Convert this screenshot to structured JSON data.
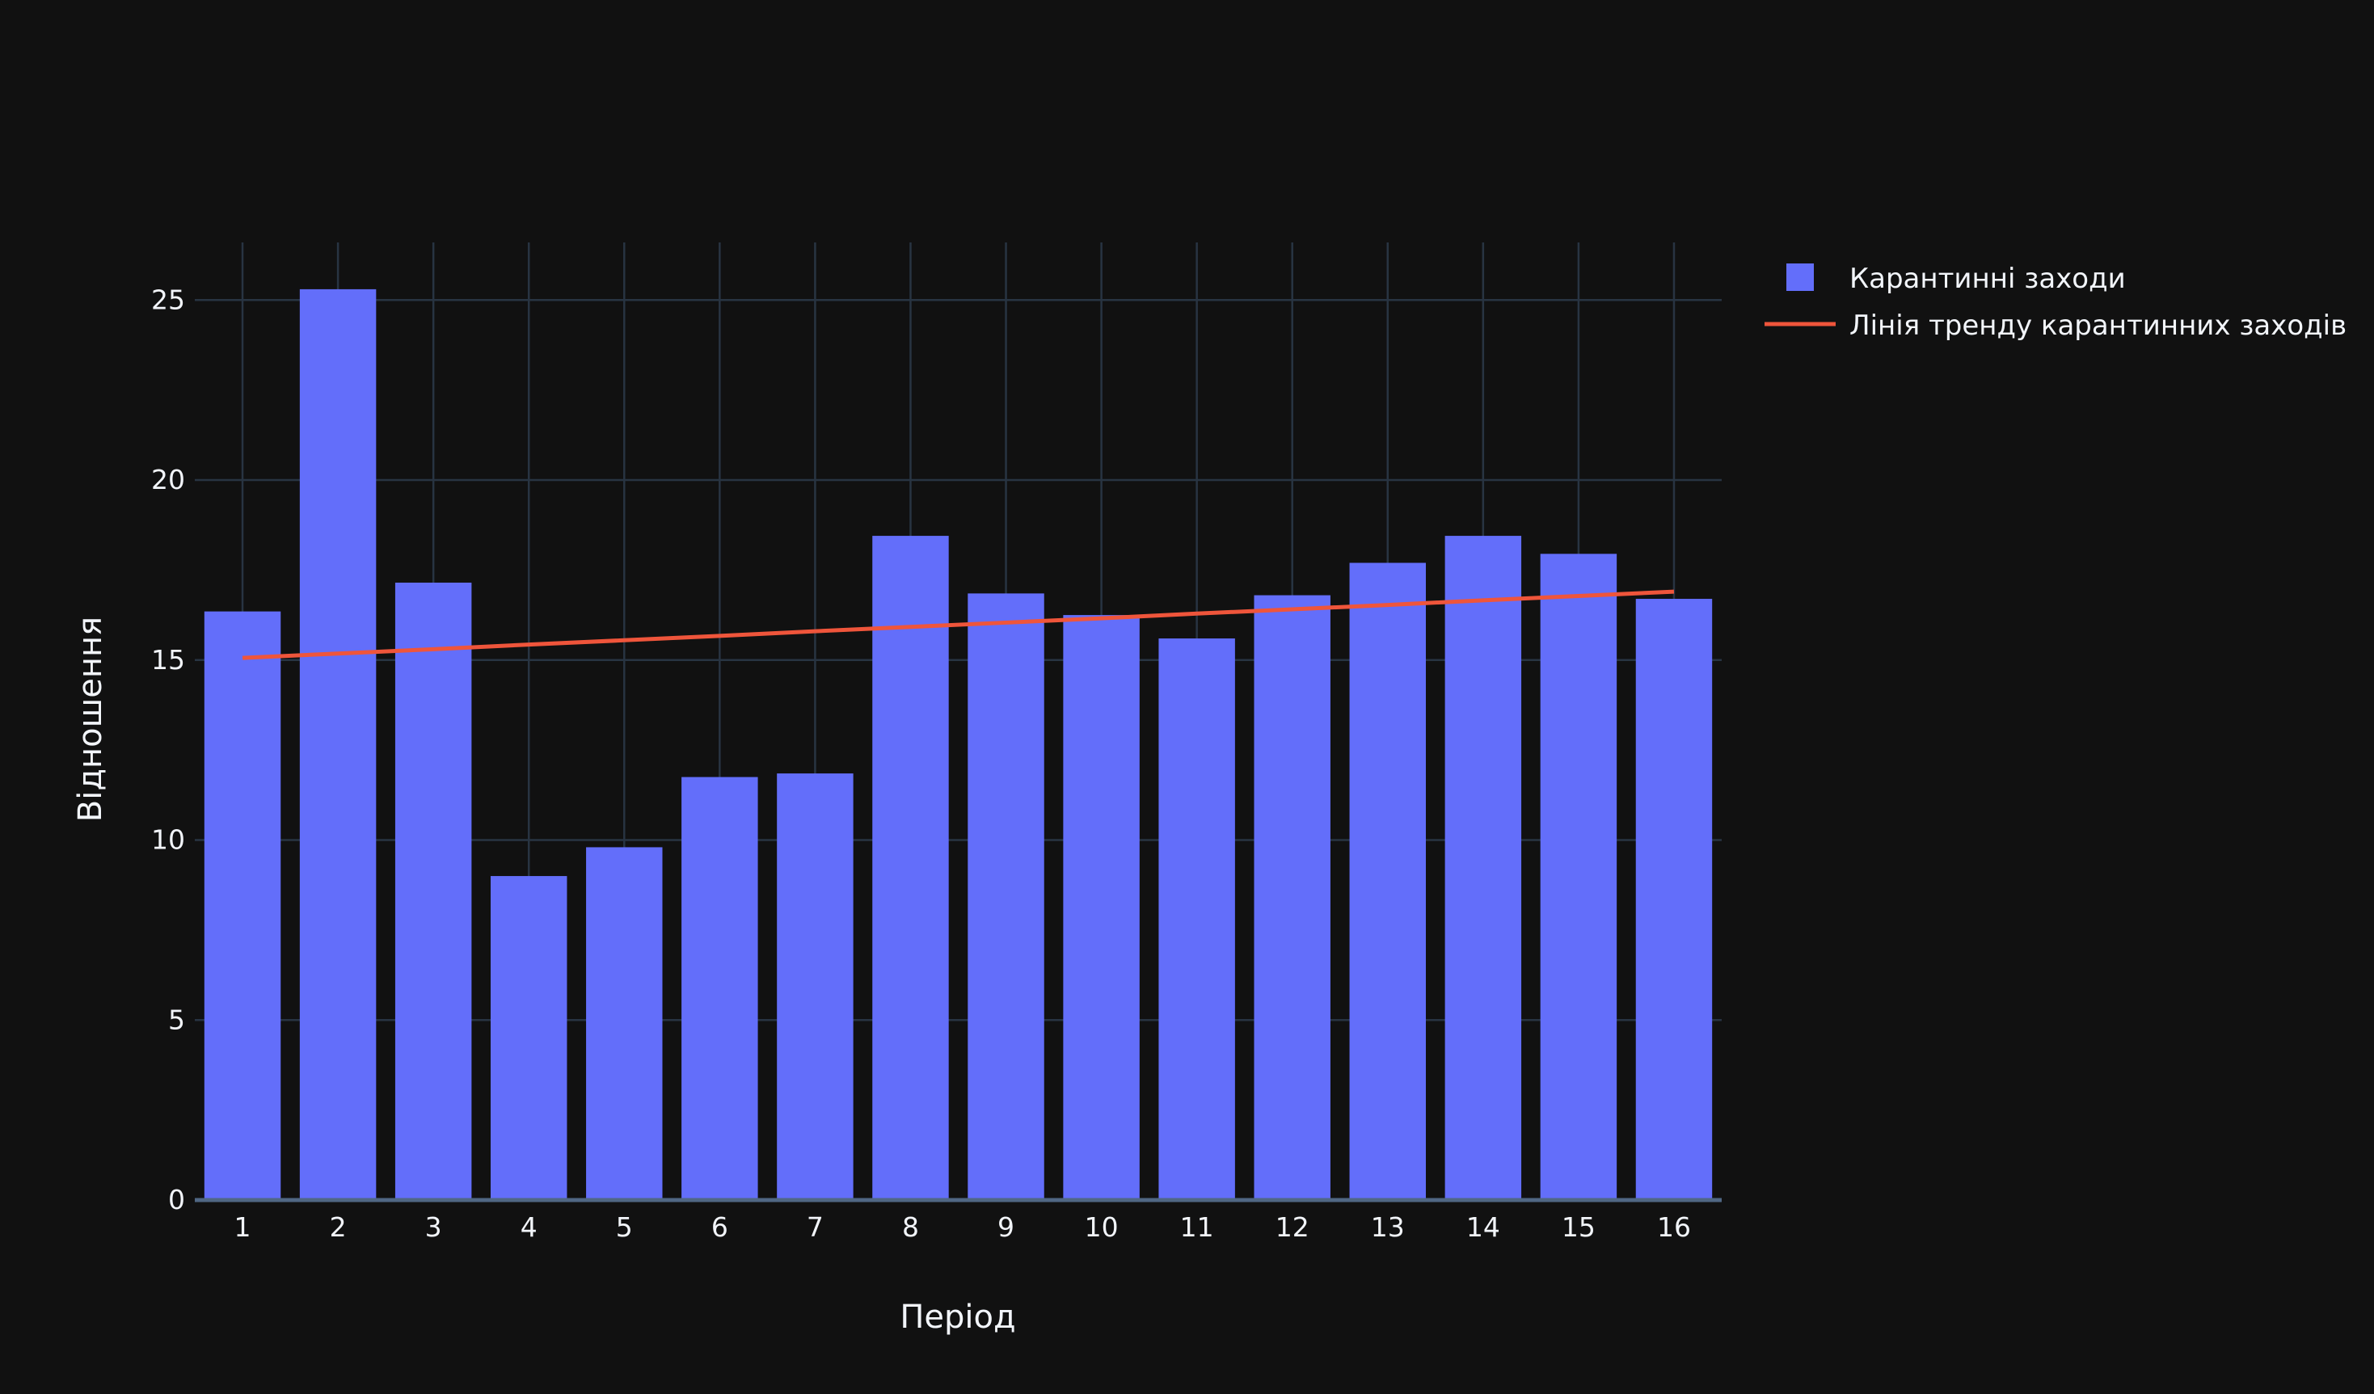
{
  "chart_data": {
    "type": "bar",
    "xlabel": "Період",
    "ylabel": "Відношення",
    "categories": [
      "1",
      "2",
      "3",
      "4",
      "5",
      "6",
      "7",
      "8",
      "9",
      "10",
      "11",
      "12",
      "13",
      "14",
      "15",
      "16"
    ],
    "series": [
      {
        "name": "Карантинні заходи",
        "type": "bar",
        "color": "#636efa",
        "values": [
          16.35,
          25.3,
          17.15,
          9.0,
          9.8,
          11.75,
          11.85,
          18.45,
          16.85,
          16.25,
          15.6,
          16.8,
          17.7,
          18.45,
          17.95,
          16.7
        ]
      },
      {
        "name": "Лінія тренду карантинних заходів",
        "type": "line",
        "color": "#ef553b",
        "values": [
          15.06,
          15.18,
          15.3,
          15.43,
          15.55,
          15.67,
          15.8,
          15.92,
          16.04,
          16.16,
          16.29,
          16.41,
          16.53,
          16.66,
          16.78,
          16.9
        ]
      }
    ],
    "ylim": [
      0,
      26.6
    ],
    "yticks": [
      0,
      5,
      10,
      15,
      20,
      25
    ],
    "grid": true,
    "legend_position": "top-right"
  }
}
